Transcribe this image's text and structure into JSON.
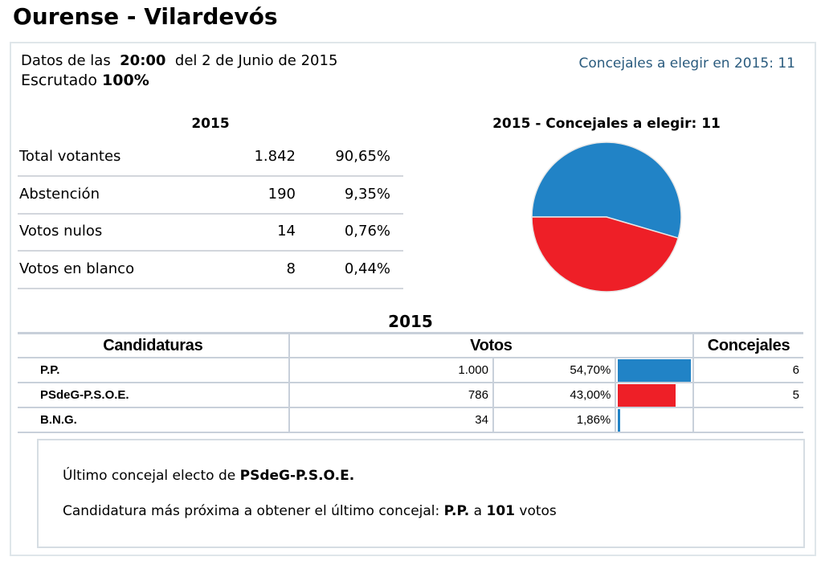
{
  "title": "Ourense - Vilardevós",
  "info": {
    "prefix": "Datos de las",
    "time": "20:00",
    "date": "del 2 de Junio de 2015",
    "scrutiny_label": "Escrutado",
    "scrutiny": "100%"
  },
  "concejales_header": "Concejales a elegir en 2015: 11",
  "summary": {
    "title": "2015",
    "rows": [
      {
        "label": "Total votantes",
        "value": "1.842",
        "pct": "90,65%"
      },
      {
        "label": "Abstención",
        "value": "190",
        "pct": "9,35%"
      },
      {
        "label": "Votos nulos",
        "value": "14",
        "pct": "0,76%"
      },
      {
        "label": "Votos en blanco",
        "value": "8",
        "pct": "0,44%"
      }
    ]
  },
  "chart_data": {
    "type": "pie",
    "title": "2015 - Concejales a elegir: 11",
    "labels": [
      "P.P.",
      "PSdeG-P.S.O.E."
    ],
    "values": [
      6,
      5
    ],
    "colors": [
      "#2183c6",
      "#ee1f27"
    ]
  },
  "results": {
    "title": "2015",
    "headers": [
      "Candidaturas",
      "Votos",
      "Concejales"
    ],
    "rows": [
      {
        "name": "P.P.",
        "votes": "1.000",
        "pct": "54,70%",
        "pct_value": 54.7,
        "seats": "6",
        "color": "#2183c6"
      },
      {
        "name": "PSdeG-P.S.O.E.",
        "votes": "786",
        "pct": "43,00%",
        "pct_value": 43.0,
        "seats": "5",
        "color": "#ee1f27"
      },
      {
        "name": "B.N.G.",
        "votes": "34",
        "pct": "1,86%",
        "pct_value": 1.86,
        "seats": "",
        "color": "#2183c6"
      }
    ]
  },
  "note": {
    "line1_prefix": "Último concejal electo de",
    "line1_party": "PSdeG-P.S.O.E.",
    "line2_prefix": "Candidatura más próxima a obtener el último concejal:",
    "line2_party": "P.P.",
    "line2_mid": "a",
    "line2_votes": "101",
    "line2_suffix": "votos"
  }
}
